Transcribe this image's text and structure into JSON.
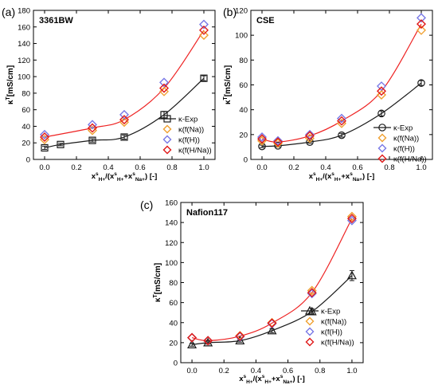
{
  "colors": {
    "exp": "#1a1a1a",
    "na": "#f0a030",
    "h": "#7878e6",
    "hna": "#e01818",
    "fit": "#ee2222"
  },
  "legend_labels": [
    "κ-Exp",
    "κ(f(Na))",
    "κ(f(H))",
    "κ(f(H/Na))"
  ],
  "xlabel": "x_H+^s/(x_H+^s+x_Na+^s) [-]",
  "ylabel": "κ^T[mS/cm]",
  "chart_data": [
    {
      "type": "scatter",
      "panel_label": "(a)",
      "title": "3361BW",
      "xlim": [
        -0.07,
        1.07
      ],
      "ylim": [
        0,
        180
      ],
      "xticks": [
        "0.0",
        "0.2",
        "0.4",
        "0.6",
        "0.8",
        "1.0"
      ],
      "yticks": [
        "0",
        "20",
        "40",
        "60",
        "80",
        "100",
        "120",
        "140",
        "160",
        "180"
      ],
      "exp_marker": "square",
      "series": [
        {
          "name": "κ-Exp",
          "x": [
            0.0,
            0.1,
            0.3,
            0.5,
            0.75,
            1.0
          ],
          "y": [
            14,
            18,
            23,
            27,
            54,
            98
          ],
          "err": [
            2,
            1.5,
            2,
            2.5,
            4,
            3
          ]
        },
        {
          "name": "κ(f(Na))",
          "x": [
            0.0,
            0.3,
            0.5,
            0.75,
            1.0
          ],
          "y": [
            24,
            35,
            45,
            82,
            150
          ]
        },
        {
          "name": "κ(f(H))",
          "x": [
            0.0,
            0.3,
            0.5,
            0.75,
            1.0
          ],
          "y": [
            30,
            42,
            54,
            93,
            163
          ]
        },
        {
          "name": "κ(f(H/Na))",
          "x": [
            0.0,
            0.3,
            0.5,
            0.75,
            1.0
          ],
          "y": [
            27,
            38,
            48,
            86,
            156
          ]
        }
      ]
    },
    {
      "type": "scatter",
      "panel_label": "(b)",
      "title": "CSE",
      "xlim": [
        -0.07,
        1.07
      ],
      "ylim": [
        0,
        120
      ],
      "xticks": [
        "0.0",
        "0.2",
        "0.4",
        "0.6",
        "0.8",
        "1.0"
      ],
      "yticks": [
        "0",
        "20",
        "40",
        "60",
        "80",
        "100",
        "120"
      ],
      "exp_marker": "circle",
      "series": [
        {
          "name": "κ-Exp",
          "x": [
            0.0,
            0.1,
            0.3,
            0.5,
            0.75,
            1.0
          ],
          "y": [
            10.5,
            11,
            14,
            19.5,
            37,
            61.5
          ],
          "err": [
            1,
            1,
            1,
            1.5,
            2,
            2
          ]
        },
        {
          "name": "κ(f(Na))",
          "x": [
            0.0,
            0.1,
            0.3,
            0.5,
            0.75,
            1.0
          ],
          "y": [
            15,
            13,
            17,
            29,
            52,
            104
          ]
        },
        {
          "name": "κ(f(H))",
          "x": [
            0.0,
            0.1,
            0.3,
            0.5,
            0.75,
            1.0
          ],
          "y": [
            18,
            15,
            20,
            33,
            59,
            114
          ]
        },
        {
          "name": "κ(f(H/Na))",
          "x": [
            0.0,
            0.1,
            0.3,
            0.5,
            0.75,
            1.0
          ],
          "y": [
            16.5,
            14,
            19,
            31,
            55,
            109
          ]
        }
      ]
    },
    {
      "type": "scatter",
      "panel_label": "(c)",
      "title": "Nafion117",
      "xlim": [
        -0.07,
        1.07
      ],
      "ylim": [
        0,
        160
      ],
      "xticks": [
        "0.0",
        "0.2",
        "0.4",
        "0.6",
        "0.8",
        "1.0"
      ],
      "yticks": [
        "0",
        "20",
        "40",
        "60",
        "80",
        "100",
        "120",
        "140",
        "160"
      ],
      "exp_marker": "triangle",
      "series": [
        {
          "name": "κ-Exp",
          "x": [
            0.0,
            0.1,
            0.3,
            0.5,
            0.75,
            1.0
          ],
          "y": [
            18,
            20,
            22,
            32,
            51,
            87
          ],
          "err": [
            1.5,
            1.5,
            1.5,
            2,
            3,
            5
          ]
        },
        {
          "name": "κ(f(Na))",
          "x": [
            0.0,
            0.1,
            0.3,
            0.5,
            0.75,
            1.0
          ],
          "y": [
            25,
            22,
            27,
            40,
            72,
            146
          ]
        },
        {
          "name": "κ(f(H))",
          "x": [
            0.0,
            0.1,
            0.3,
            0.5,
            0.75,
            1.0
          ],
          "y": [
            25,
            22,
            26,
            39,
            69,
            142
          ]
        },
        {
          "name": "κ(f(H/Na))",
          "x": [
            0.0,
            0.1,
            0.3,
            0.5,
            0.75,
            1.0
          ],
          "y": [
            25,
            22,
            26.5,
            39.5,
            70,
            144
          ]
        }
      ]
    }
  ]
}
